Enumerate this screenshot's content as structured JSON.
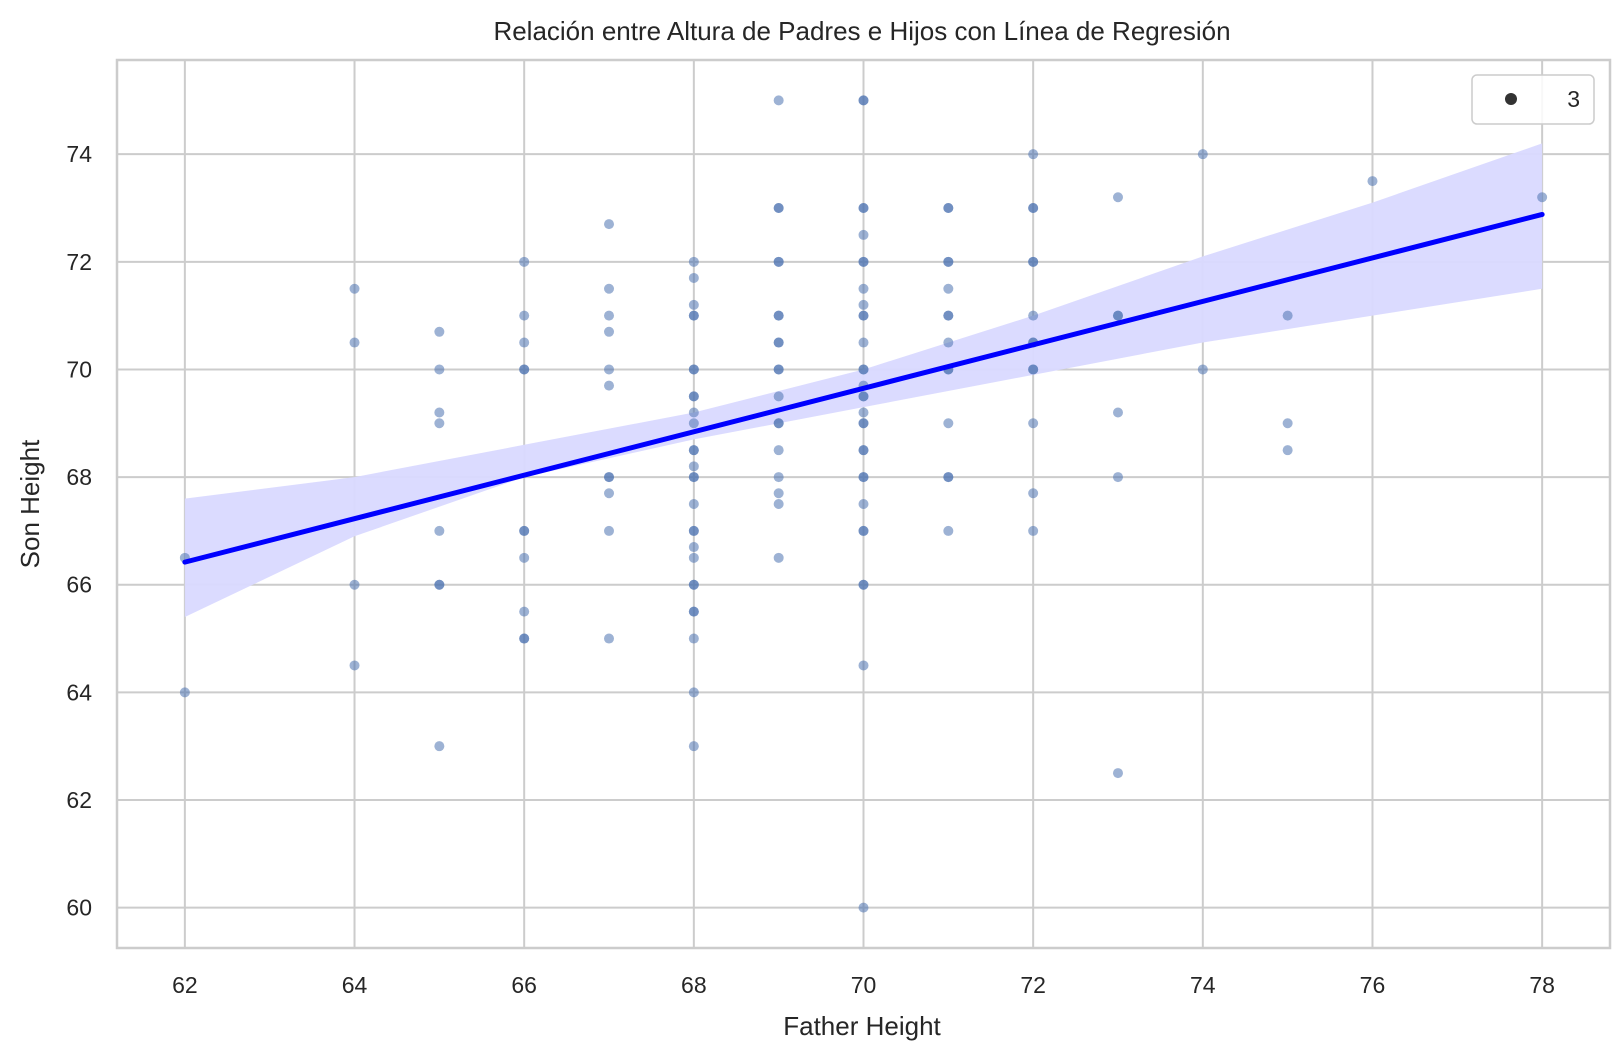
{
  "chart_data": {
    "type": "scatter",
    "title": "Relación entre Altura de Padres e Hijos con Línea de Regresión",
    "xlabel": "Father Height",
    "ylabel": "Son Height",
    "xlim": [
      61.2,
      78.8
    ],
    "ylim": [
      59.25,
      75.75
    ],
    "xticks": [
      62,
      64,
      66,
      68,
      70,
      72,
      74,
      76,
      78
    ],
    "yticks": [
      60,
      62,
      64,
      66,
      68,
      70,
      72,
      74
    ],
    "grid": true,
    "legend": {
      "placement": "top-right",
      "entries": [
        {
          "label": "3",
          "marker": "circle"
        }
      ]
    },
    "colors": {
      "points": "#4c72b0",
      "regression_line": "#0000ff",
      "confidence_band": "#d9d9ff",
      "grid": "#cccccc",
      "marker": "#333333"
    },
    "points": [
      [
        62,
        66.5
      ],
      [
        62,
        64
      ],
      [
        64,
        71.5
      ],
      [
        64,
        70.5
      ],
      [
        64,
        66
      ],
      [
        64,
        64.5
      ],
      [
        65,
        70.7
      ],
      [
        65,
        70
      ],
      [
        65,
        69.2
      ],
      [
        65,
        69
      ],
      [
        65,
        67
      ],
      [
        65,
        66
      ],
      [
        65,
        66
      ],
      [
        65,
        63
      ],
      [
        66,
        72
      ],
      [
        66,
        71
      ],
      [
        66,
        70.5
      ],
      [
        66,
        70
      ],
      [
        66,
        70
      ],
      [
        66,
        67
      ],
      [
        66,
        67
      ],
      [
        66,
        66.5
      ],
      [
        66,
        65.5
      ],
      [
        66,
        65
      ],
      [
        66,
        65
      ],
      [
        67,
        72.7
      ],
      [
        67,
        71.5
      ],
      [
        67,
        71
      ],
      [
        67,
        70.7
      ],
      [
        67,
        70
      ],
      [
        67,
        69.7
      ],
      [
        67,
        68
      ],
      [
        67,
        68
      ],
      [
        67,
        67.7
      ],
      [
        67,
        67
      ],
      [
        67,
        65
      ],
      [
        68,
        72
      ],
      [
        68,
        71.7
      ],
      [
        68,
        71.2
      ],
      [
        68,
        71
      ],
      [
        68,
        71
      ],
      [
        68,
        70
      ],
      [
        68,
        70
      ],
      [
        68,
        69.5
      ],
      [
        68,
        69.5
      ],
      [
        68,
        69.2
      ],
      [
        68,
        69
      ],
      [
        68,
        68.5
      ],
      [
        68,
        68.5
      ],
      [
        68,
        68.2
      ],
      [
        68,
        68
      ],
      [
        68,
        68
      ],
      [
        68,
        67.5
      ],
      [
        68,
        67
      ],
      [
        68,
        67
      ],
      [
        68,
        66.7
      ],
      [
        68,
        66.5
      ],
      [
        68,
        66
      ],
      [
        68,
        66
      ],
      [
        68,
        65.5
      ],
      [
        68,
        65.5
      ],
      [
        68,
        65
      ],
      [
        68,
        64
      ],
      [
        68,
        63
      ],
      [
        69,
        75
      ],
      [
        69,
        73
      ],
      [
        69,
        73
      ],
      [
        69,
        72
      ],
      [
        69,
        72
      ],
      [
        69,
        71
      ],
      [
        69,
        71
      ],
      [
        69,
        70.5
      ],
      [
        69,
        70.5
      ],
      [
        69,
        70
      ],
      [
        69,
        70
      ],
      [
        69,
        69.5
      ],
      [
        69,
        69
      ],
      [
        69,
        69
      ],
      [
        69,
        68.5
      ],
      [
        69,
        68
      ],
      [
        69,
        67.7
      ],
      [
        69,
        67.5
      ],
      [
        69,
        66.5
      ],
      [
        70,
        75
      ],
      [
        70,
        75
      ],
      [
        70,
        73
      ],
      [
        70,
        73
      ],
      [
        70,
        72.5
      ],
      [
        70,
        72
      ],
      [
        70,
        72
      ],
      [
        70,
        71.5
      ],
      [
        70,
        71.2
      ],
      [
        70,
        71
      ],
      [
        70,
        71
      ],
      [
        70,
        70.5
      ],
      [
        70,
        70
      ],
      [
        70,
        70
      ],
      [
        70,
        69.7
      ],
      [
        70,
        69.5
      ],
      [
        70,
        69.5
      ],
      [
        70,
        69.2
      ],
      [
        70,
        69
      ],
      [
        70,
        69
      ],
      [
        70,
        68.5
      ],
      [
        70,
        68.5
      ],
      [
        70,
        68
      ],
      [
        70,
        68
      ],
      [
        70,
        67.5
      ],
      [
        70,
        67
      ],
      [
        70,
        67
      ],
      [
        70,
        66
      ],
      [
        70,
        66
      ],
      [
        70,
        64.5
      ],
      [
        70,
        60
      ],
      [
        71,
        73
      ],
      [
        71,
        73
      ],
      [
        71,
        72
      ],
      [
        71,
        72
      ],
      [
        71,
        71.5
      ],
      [
        71,
        71
      ],
      [
        71,
        71
      ],
      [
        71,
        70.5
      ],
      [
        71,
        70
      ],
      [
        71,
        70
      ],
      [
        71,
        69
      ],
      [
        71,
        68
      ],
      [
        71,
        68
      ],
      [
        71,
        67
      ],
      [
        72,
        74
      ],
      [
        72,
        73
      ],
      [
        72,
        73
      ],
      [
        72,
        72
      ],
      [
        72,
        72
      ],
      [
        72,
        71
      ],
      [
        72,
        70.5
      ],
      [
        72,
        70.5
      ],
      [
        72,
        70
      ],
      [
        72,
        70
      ],
      [
        72,
        69
      ],
      [
        72,
        67.7
      ],
      [
        72,
        67
      ],
      [
        73,
        73.2
      ],
      [
        73,
        71
      ],
      [
        73,
        71
      ],
      [
        73,
        69.2
      ],
      [
        73,
        68
      ],
      [
        73,
        62.5
      ],
      [
        74,
        74
      ],
      [
        74,
        70
      ],
      [
        75,
        71
      ],
      [
        75,
        69
      ],
      [
        75,
        68.5
      ],
      [
        76,
        73.5
      ],
      [
        78,
        73.2
      ]
    ],
    "regression": {
      "x": [
        62,
        78
      ],
      "y": [
        66.42,
        72.88
      ],
      "ci_lower": [
        [
          62,
          65.4
        ],
        [
          64,
          66.9
        ],
        [
          66,
          68.0
        ],
        [
          68,
          68.7
        ],
        [
          70,
          69.3
        ],
        [
          72,
          69.9
        ],
        [
          74,
          70.5
        ],
        [
          76,
          71.0
        ],
        [
          78,
          71.5
        ]
      ],
      "ci_upper": [
        [
          62,
          67.6
        ],
        [
          64,
          68.0
        ],
        [
          66,
          68.6
        ],
        [
          68,
          69.2
        ],
        [
          70,
          70.0
        ],
        [
          72,
          71.0
        ],
        [
          74,
          72.1
        ],
        [
          76,
          73.1
        ],
        [
          78,
          74.2
        ]
      ]
    }
  }
}
